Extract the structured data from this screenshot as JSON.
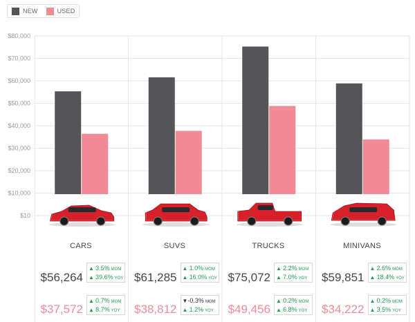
{
  "colors": {
    "new": "#555557",
    "used": "#f08a94",
    "grid": "#e6e6e6",
    "up": "#1e9e4b",
    "down": "#333333"
  },
  "legend": {
    "new_label": "NEW",
    "used_label": "USED"
  },
  "chart_data": {
    "type": "bar",
    "categories": [
      "CARS",
      "SUVS",
      "TRUCKS",
      "MINIVANS"
    ],
    "series": [
      {
        "name": "NEW",
        "values": [
          55500,
          61700,
          75300,
          59000
        ]
      },
      {
        "name": "USED",
        "values": [
          36700,
          38000,
          49000,
          34200
        ]
      }
    ],
    "y_ticks": [
      "$80,000",
      "$70,000",
      "$60,000",
      "$50,000",
      "$40,000",
      "$30,000",
      "$20,000",
      "$10,000",
      "$10"
    ],
    "ylim": [
      10,
      80000
    ],
    "grid": true,
    "legend_position": "top-left"
  },
  "groups": [
    {
      "category": "CARS",
      "icon": "sedan-car-icon",
      "new_price": "$56,264",
      "used_price": "$37,572",
      "new_mom": {
        "dir": "up",
        "value": "3.5%",
        "suffix": "MOM"
      },
      "new_yoy": {
        "dir": "up",
        "value": "39.6%",
        "suffix": "YOY"
      },
      "used_mom": {
        "dir": "up",
        "value": "0.7%",
        "suffix": "MOM"
      },
      "used_yoy": {
        "dir": "up",
        "value": "8.7%",
        "suffix": "YOY"
      }
    },
    {
      "category": "SUVS",
      "icon": "suv-car-icon",
      "new_price": "$61,285",
      "used_price": "$38,812",
      "new_mom": {
        "dir": "up",
        "value": "1.0%",
        "suffix": "MOM"
      },
      "new_yoy": {
        "dir": "up",
        "value": "16.0%",
        "suffix": "YOY"
      },
      "used_mom": {
        "dir": "down",
        "value": "-0.3%",
        "suffix": "MOM"
      },
      "used_yoy": {
        "dir": "up",
        "value": "1.2%",
        "suffix": "YOY"
      }
    },
    {
      "category": "TRUCKS",
      "icon": "pickup-truck-icon",
      "new_price": "$75,072",
      "used_price": "$49,456",
      "new_mom": {
        "dir": "up",
        "value": "2.2%",
        "suffix": "MOM"
      },
      "new_yoy": {
        "dir": "up",
        "value": "7.0%",
        "suffix": "YOY"
      },
      "used_mom": {
        "dir": "up",
        "value": "0.2%",
        "suffix": "MOM"
      },
      "used_yoy": {
        "dir": "up",
        "value": "6.8%",
        "suffix": "YOY"
      }
    },
    {
      "category": "MINIVANS",
      "icon": "minivan-icon",
      "new_price": "$59,851",
      "used_price": "$34,222",
      "new_mom": {
        "dir": "up",
        "value": "2.6%",
        "suffix": "MOM"
      },
      "new_yoy": {
        "dir": "up",
        "value": "18.4%",
        "suffix": "YOY"
      },
      "used_mom": {
        "dir": "up",
        "value": "0.2%",
        "suffix": "MOM"
      },
      "used_yoy": {
        "dir": "up",
        "value": "3.5%",
        "suffix": "YOY"
      }
    }
  ]
}
